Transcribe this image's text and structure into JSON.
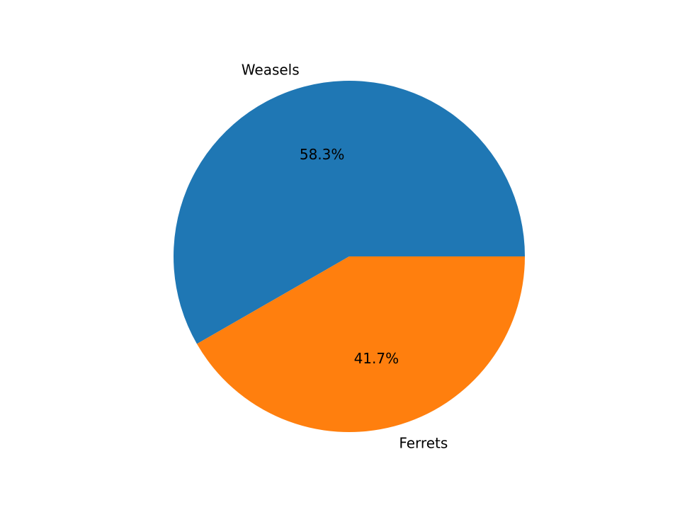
{
  "chart_data": {
    "type": "pie",
    "title": "",
    "start_angle_deg": 0,
    "direction": "counterclockwise",
    "slices": [
      {
        "label": "Weasels",
        "value": 58.3,
        "pct_label": "58.3%",
        "color": "#1f77b4"
      },
      {
        "label": "Ferrets",
        "value": 41.7,
        "pct_label": "41.7%",
        "color": "#ff7f0e"
      }
    ]
  }
}
